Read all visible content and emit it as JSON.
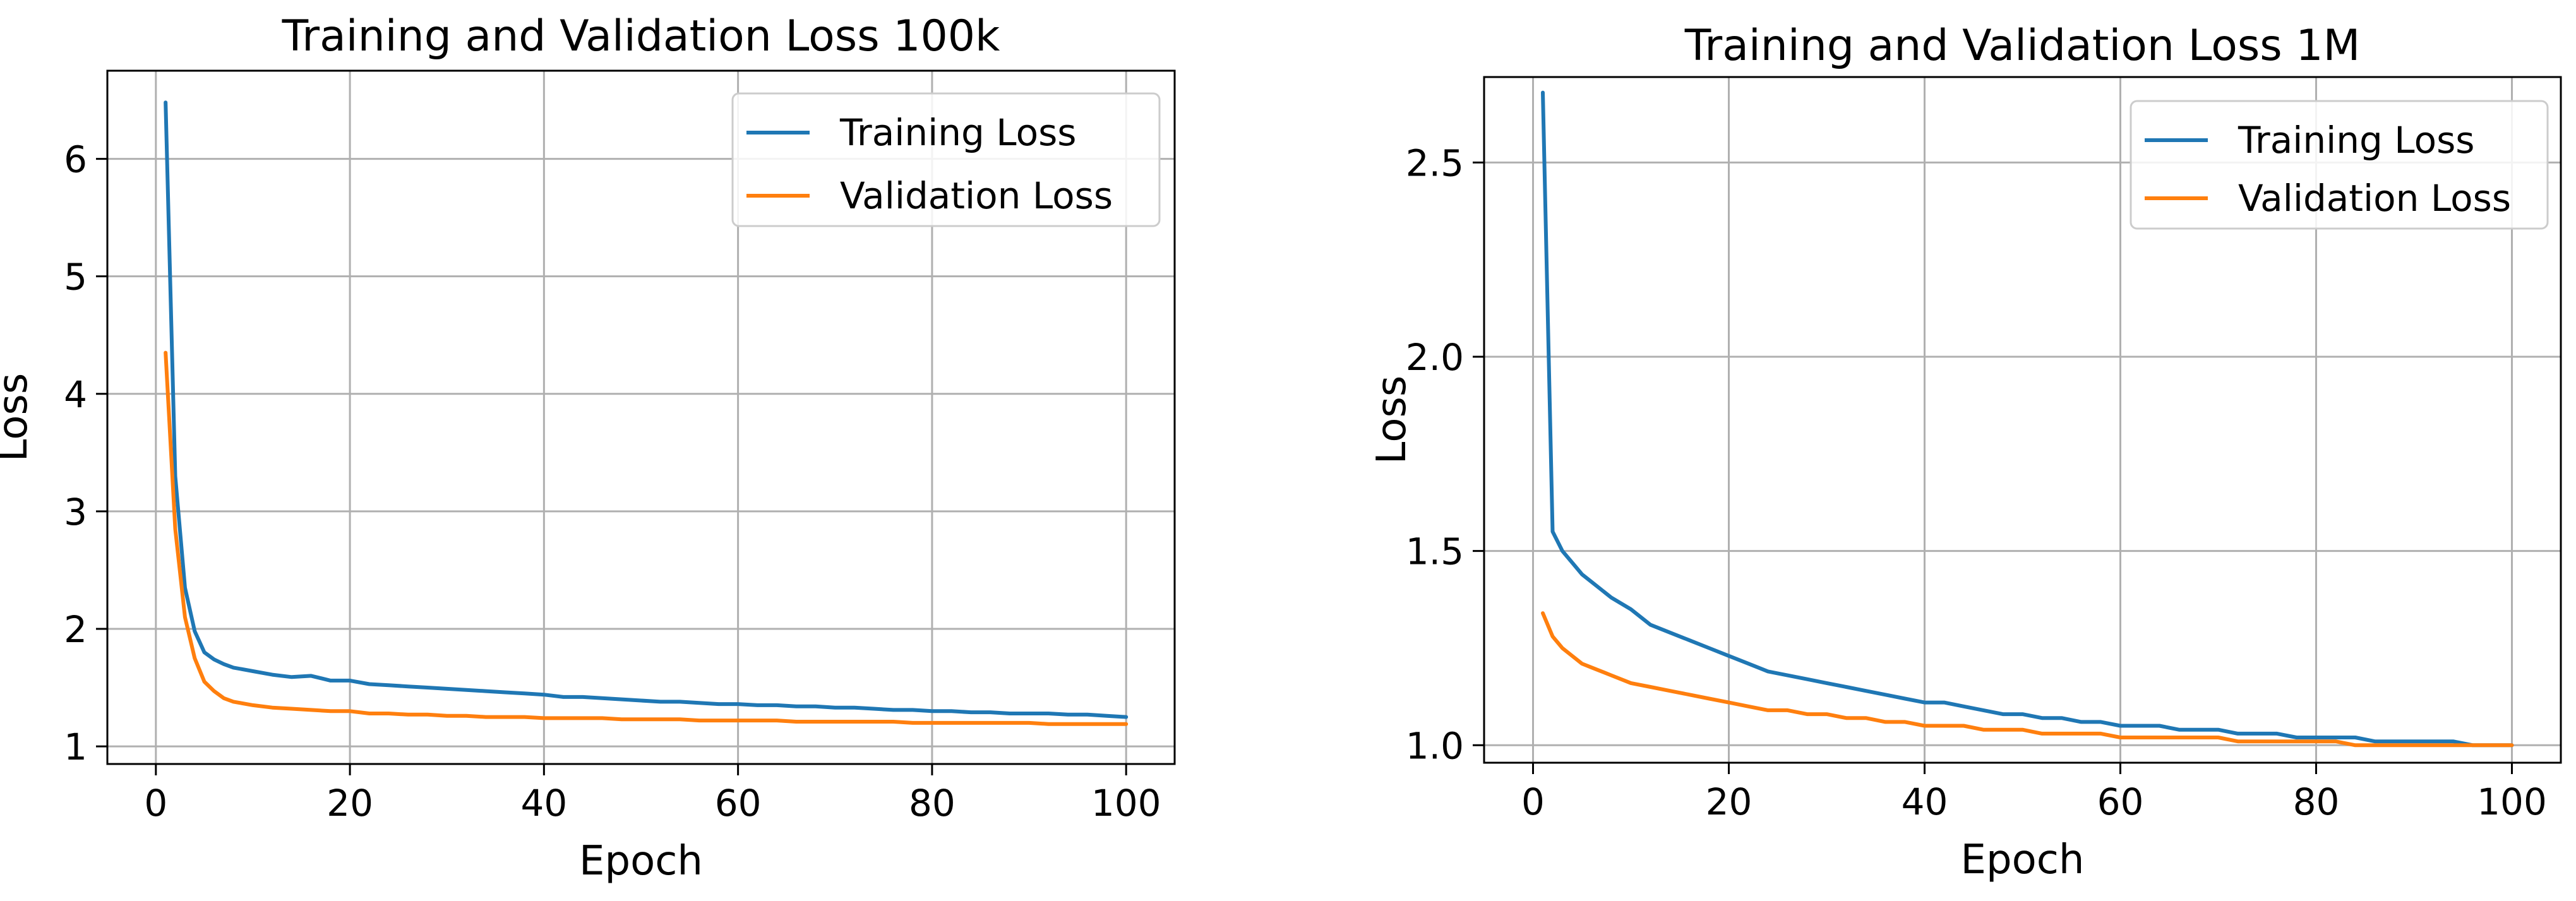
{
  "colors": {
    "training": "#1f77b4",
    "validation": "#ff7f0e",
    "grid": "#b0b0b0",
    "background": "#ffffff"
  },
  "chart_data": [
    {
      "type": "line",
      "title": "Training and Validation Loss 100k",
      "xlabel": "Epoch",
      "ylabel": "Loss",
      "xlim": [
        -5,
        105
      ],
      "ylim": [
        0.85,
        6.75
      ],
      "xticks": [
        0,
        20,
        40,
        60,
        80,
        100
      ],
      "yticks": [
        1,
        2,
        3,
        4,
        5,
        6
      ],
      "ytick_labels": [
        "1",
        "2",
        "3",
        "4",
        "5",
        "6"
      ],
      "grid": true,
      "legend_position": "top-right",
      "x": [
        1,
        2,
        3,
        4,
        5,
        6,
        7,
        8,
        10,
        12,
        14,
        16,
        18,
        20,
        22,
        24,
        26,
        28,
        30,
        32,
        34,
        36,
        38,
        40,
        42,
        44,
        46,
        48,
        50,
        52,
        54,
        56,
        58,
        60,
        62,
        64,
        66,
        68,
        70,
        72,
        74,
        76,
        78,
        80,
        82,
        84,
        86,
        88,
        90,
        92,
        94,
        96,
        98,
        100
      ],
      "series": [
        {
          "name": "Training Loss",
          "color_key": "training",
          "values": [
            6.48,
            3.3,
            2.35,
            1.98,
            1.8,
            1.74,
            1.7,
            1.67,
            1.64,
            1.61,
            1.59,
            1.6,
            1.56,
            1.56,
            1.53,
            1.52,
            1.51,
            1.5,
            1.49,
            1.48,
            1.47,
            1.46,
            1.45,
            1.44,
            1.42,
            1.42,
            1.41,
            1.4,
            1.39,
            1.38,
            1.38,
            1.37,
            1.36,
            1.36,
            1.35,
            1.35,
            1.34,
            1.34,
            1.33,
            1.33,
            1.32,
            1.31,
            1.31,
            1.3,
            1.3,
            1.29,
            1.29,
            1.28,
            1.28,
            1.28,
            1.27,
            1.27,
            1.26,
            1.25
          ]
        },
        {
          "name": "Validation Loss",
          "color_key": "validation",
          "values": [
            4.35,
            2.85,
            2.1,
            1.75,
            1.55,
            1.47,
            1.41,
            1.38,
            1.35,
            1.33,
            1.32,
            1.31,
            1.3,
            1.3,
            1.28,
            1.28,
            1.27,
            1.27,
            1.26,
            1.26,
            1.25,
            1.25,
            1.25,
            1.24,
            1.24,
            1.24,
            1.24,
            1.23,
            1.23,
            1.23,
            1.23,
            1.22,
            1.22,
            1.22,
            1.22,
            1.22,
            1.21,
            1.21,
            1.21,
            1.21,
            1.21,
            1.21,
            1.2,
            1.2,
            1.2,
            1.2,
            1.2,
            1.2,
            1.2,
            1.19,
            1.19,
            1.19,
            1.19,
            1.19
          ]
        }
      ]
    },
    {
      "type": "line",
      "title": "Training and Validation Loss 1M",
      "xlabel": "Epoch",
      "ylabel": "Loss",
      "xlim": [
        -5,
        105
      ],
      "ylim": [
        0.955,
        2.72
      ],
      "xticks": [
        0,
        20,
        40,
        60,
        80,
        100
      ],
      "yticks": [
        1.0,
        1.5,
        2.0,
        2.5
      ],
      "ytick_labels": [
        "1.0",
        "1.5",
        "2.0",
        "2.5"
      ],
      "grid": true,
      "legend_position": "top-right",
      "x": [
        1,
        2,
        3,
        4,
        5,
        6,
        7,
        8,
        10,
        12,
        14,
        16,
        18,
        20,
        22,
        24,
        26,
        28,
        30,
        32,
        34,
        36,
        38,
        40,
        42,
        44,
        46,
        48,
        50,
        52,
        54,
        56,
        58,
        60,
        62,
        64,
        66,
        68,
        70,
        72,
        74,
        76,
        78,
        80,
        82,
        84,
        86,
        88,
        90,
        92,
        94,
        96,
        98,
        100
      ],
      "series": [
        {
          "name": "Training Loss",
          "color_key": "training",
          "values": [
            2.68,
            1.55,
            1.5,
            1.47,
            1.44,
            1.42,
            1.4,
            1.38,
            1.35,
            1.31,
            1.29,
            1.27,
            1.25,
            1.23,
            1.21,
            1.19,
            1.18,
            1.17,
            1.16,
            1.15,
            1.14,
            1.13,
            1.12,
            1.11,
            1.11,
            1.1,
            1.09,
            1.08,
            1.08,
            1.07,
            1.07,
            1.06,
            1.06,
            1.05,
            1.05,
            1.05,
            1.04,
            1.04,
            1.04,
            1.03,
            1.03,
            1.03,
            1.02,
            1.02,
            1.02,
            1.02,
            1.01,
            1.01,
            1.01,
            1.01,
            1.01,
            1.0,
            1.0,
            1.0
          ]
        },
        {
          "name": "Validation Loss",
          "color_key": "validation",
          "values": [
            1.34,
            1.28,
            1.25,
            1.23,
            1.21,
            1.2,
            1.19,
            1.18,
            1.16,
            1.15,
            1.14,
            1.13,
            1.12,
            1.11,
            1.1,
            1.09,
            1.09,
            1.08,
            1.08,
            1.07,
            1.07,
            1.06,
            1.06,
            1.05,
            1.05,
            1.05,
            1.04,
            1.04,
            1.04,
            1.03,
            1.03,
            1.03,
            1.03,
            1.02,
            1.02,
            1.02,
            1.02,
            1.02,
            1.02,
            1.01,
            1.01,
            1.01,
            1.01,
            1.01,
            1.01,
            1.0,
            1.0,
            1.0,
            1.0,
            1.0,
            1.0,
            1.0,
            1.0,
            1.0
          ]
        }
      ]
    }
  ]
}
